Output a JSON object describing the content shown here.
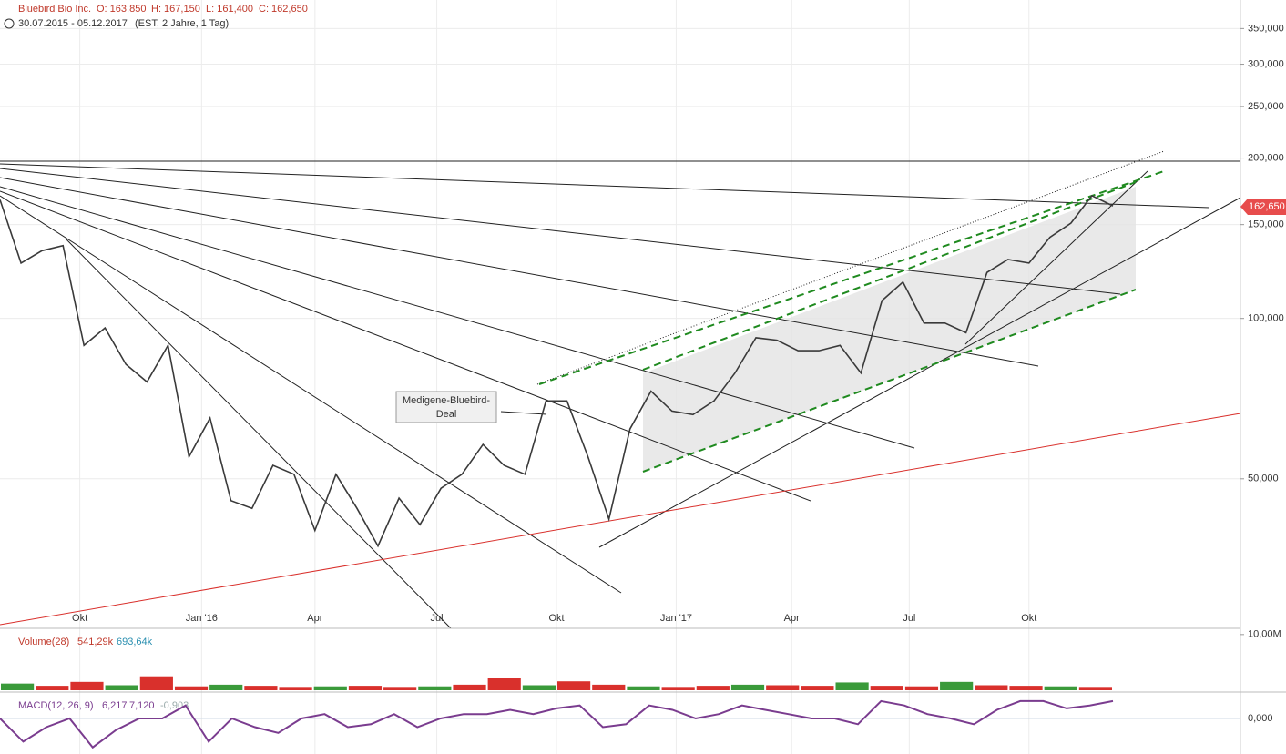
{
  "chart_data": {
    "type": "line",
    "title": "Bluebird Bio Inc.",
    "ohlc": [
      "O: 163,850",
      "H: 167,150",
      "L: 161,400",
      "C: 162,650"
    ],
    "period": "30.07.2015 - 05.12.2017",
    "period_note": "(EST, 2 Jahre, 1 Tag)",
    "annotation": [
      "Medigene-Bluebird-",
      "Deal"
    ],
    "last_label": "162,650",
    "log_scale": true,
    "color": "#3a3a3a",
    "values": [
      167,
      127,
      134,
      137,
      89,
      96,
      82,
      76,
      89,
      55,
      65,
      45.5,
      44,
      53,
      51,
      40,
      51,
      44,
      37.4,
      46,
      41,
      48,
      51,
      58,
      53,
      51,
      70,
      70,
      55,
      42,
      62,
      73,
      67,
      66,
      70,
      79,
      92,
      91,
      87,
      87,
      89,
      79,
      108,
      117,
      98,
      98,
      94,
      122,
      129,
      127,
      142,
      151,
      170,
      162.65
    ],
    "xlim": [
      0,
      53
    ],
    "xticks": [
      {
        "value": 3.8,
        "label": "Okt"
      },
      {
        "value": 9.6,
        "label": "Jan '16"
      },
      {
        "value": 15.0,
        "label": "Apr"
      },
      {
        "value": 20.8,
        "label": "Jul"
      },
      {
        "value": 26.5,
        "label": "Okt"
      },
      {
        "value": 32.2,
        "label": "Jan '17"
      },
      {
        "value": 37.7,
        "label": "Apr"
      },
      {
        "value": 43.3,
        "label": "Jul"
      },
      {
        "value": 49.0,
        "label": "Okt"
      }
    ],
    "ylim": [
      26.2,
      396
    ],
    "yticks": [
      {
        "value": 50,
        "label": "50,000"
      },
      {
        "value": 100,
        "label": "100,000"
      },
      {
        "value": 150,
        "label": "150,000"
      },
      {
        "value": 200,
        "label": "200,000"
      },
      {
        "value": 250,
        "label": "250,000"
      },
      {
        "value": 300,
        "label": "300,000"
      },
      {
        "value": 350,
        "label": "350,000"
      }
    ],
    "grid": true,
    "volume": {
      "name": "Volume(28)",
      "stats": [
        "541,29k",
        "693,64k"
      ],
      "color": "#d9302c",
      "values": [
        1.2,
        0.8,
        1.5,
        0.9,
        2.5,
        0.7,
        1.0,
        0.8,
        0.6,
        0.7,
        0.8,
        0.6,
        0.7,
        1.0,
        2.2,
        0.9,
        1.6,
        1.0,
        0.7,
        0.6,
        0.8,
        1.0,
        0.9,
        0.8,
        1.4,
        0.8,
        0.7,
        1.5,
        0.9,
        0.8,
        0.7,
        0.6
      ],
      "ylim": [
        0,
        10.3
      ],
      "yticks": [
        {
          "value": 10,
          "label": "10,00M"
        }
      ]
    },
    "macd": {
      "name": "MACD(12, 26, 9)",
      "stats": [
        "6,217",
        "7,120",
        "-0,903"
      ],
      "color": "#7a3c8f",
      "values": [
        0,
        -8,
        -3,
        0,
        -10,
        -4,
        0,
        0,
        4.5,
        -8,
        0,
        -3,
        -5,
        0,
        1.5,
        -3,
        -2,
        1.5,
        -3,
        0,
        1.5,
        1.5,
        3,
        1.5,
        3.5,
        4.5,
        -3,
        -2,
        4.5,
        3,
        0,
        1.5,
        4.5,
        3,
        1.5,
        0,
        0,
        -2,
        6,
        4.5,
        1.5,
        0,
        -2,
        3,
        6,
        6,
        3.5,
        4.5,
        6
      ],
      "ylim": [
        -12.3,
        8.5
      ],
      "yticks": [
        {
          "value": 0,
          "label": "0,000"
        }
      ]
    }
  }
}
